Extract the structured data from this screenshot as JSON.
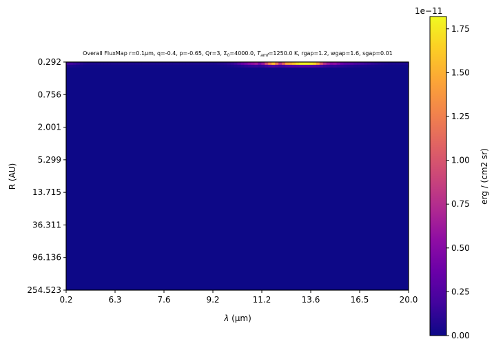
{
  "chart_data": {
    "type": "heatmap",
    "title": {
      "prefix": "Overall FluxMap r=0.1",
      "mu": "μ",
      "m_after": "m, q=-0.4, p=-0.65, Qr=3, Σ",
      "sub0": "0",
      "mid": "=4000.0, ",
      "t_main": "T",
      "t_sub": "amf",
      "suffix": "=1250.0 K, rgap=1.2, wgap=1.6, sgap=0.01"
    },
    "xlabel": {
      "lambda": "λ",
      "units": " (μm)"
    },
    "ylabel": "R (AU)",
    "x_ticks": [
      "0.2",
      "6.3",
      "7.6",
      "9.2",
      "11.2",
      "13.6",
      "16.5",
      "20.0"
    ],
    "y_ticks": [
      "0.292",
      "0.756",
      "2.001",
      "5.299",
      "13.715",
      "36.311",
      "96.136",
      "254.523"
    ],
    "colorbar": {
      "label": "erg / (cm2 sr)",
      "offset_text": "1e−11",
      "ticks": [
        "0.00",
        "0.25",
        "0.50",
        "0.75",
        "1.00",
        "1.25",
        "1.50",
        "1.75"
      ],
      "tick_values": [
        0,
        0.25,
        0.5,
        0.75,
        1.0,
        1.25,
        1.5,
        1.75
      ],
      "vmin": 0,
      "vmax": 1.82,
      "colormap": "plasma"
    },
    "background_value": 0.0,
    "bright_rows": [
      {
        "row": "R = 0.292",
        "profile": [
          0.17,
          0.17,
          0.15,
          0.12,
          0.08,
          0.06,
          0.05,
          0.05,
          0.05,
          0.05,
          0.05,
          0.05,
          0.05,
          0.05,
          0.05,
          0.05,
          0.05,
          0.05,
          0.05,
          0.05,
          0.05,
          0.05,
          0.05,
          0.05,
          0.05,
          0.05,
          0.05,
          0.05,
          0.05,
          0.05,
          0.05,
          0.05,
          0.05,
          0.05,
          0.05,
          0.05,
          0.05,
          0.05,
          0.05,
          0.05,
          0.05,
          0.05,
          0.05,
          0.05,
          0.06,
          0.07,
          0.08,
          0.1,
          0.13,
          0.17,
          0.25,
          0.35,
          0.42,
          0.5,
          0.55,
          0.62,
          0.45,
          0.6,
          0.95,
          1.3,
          1.55,
          1.2,
          0.8,
          1.1,
          1.45,
          1.5,
          1.6,
          1.72,
          1.78,
          1.8,
          1.78,
          1.75,
          1.68,
          1.45,
          1.05,
          0.75,
          0.6,
          0.5,
          0.55,
          0.45,
          0.35,
          0.3,
          0.28,
          0.26,
          0.22,
          0.2,
          0.18,
          0.16,
          0.14,
          0.12,
          0.1,
          0.08,
          0.07,
          0.06,
          0.05,
          0.05,
          0.05,
          0.05,
          0.05,
          0.05
        ]
      },
      {
        "row": "R ≈ 0.32",
        "profile": [
          0.05,
          0.05,
          0.04,
          0.03,
          0.02,
          0.01,
          0.01,
          0.01,
          0.01,
          0.01,
          0.01,
          0.01,
          0.01,
          0.01,
          0.01,
          0.01,
          0.01,
          0.01,
          0.01,
          0.01,
          0.01,
          0.01,
          0.01,
          0.01,
          0.01,
          0.01,
          0.01,
          0.01,
          0.01,
          0.01,
          0.01,
          0.01,
          0.01,
          0.01,
          0.01,
          0.01,
          0.01,
          0.01,
          0.01,
          0.01,
          0.01,
          0.01,
          0.01,
          0.01,
          0.01,
          0.02,
          0.02,
          0.03,
          0.04,
          0.05,
          0.06,
          0.08,
          0.1,
          0.12,
          0.13,
          0.14,
          0.12,
          0.14,
          0.18,
          0.22,
          0.25,
          0.22,
          0.18,
          0.2,
          0.24,
          0.25,
          0.26,
          0.27,
          0.28,
          0.28,
          0.28,
          0.27,
          0.26,
          0.24,
          0.2,
          0.16,
          0.14,
          0.12,
          0.13,
          0.11,
          0.09,
          0.08,
          0.07,
          0.06,
          0.05,
          0.05,
          0.04,
          0.04,
          0.03,
          0.03,
          0.02,
          0.02,
          0.02,
          0.01,
          0.01,
          0.01,
          0.01,
          0.01,
          0.01,
          0.01
        ]
      }
    ]
  }
}
